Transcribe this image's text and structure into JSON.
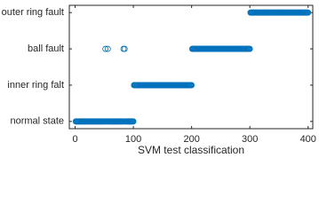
{
  "chart_data": {
    "type": "scatter",
    "xlabel": "SVM test classification",
    "xlim": [
      -10,
      408
    ],
    "xticks": [
      0,
      100,
      200,
      300,
      400
    ],
    "ylim": [
      0.8,
      4.2
    ],
    "yticks": [
      {
        "value": 1,
        "label": "normal state"
      },
      {
        "value": 2,
        "label": "inner ring falt"
      },
      {
        "value": 3,
        "label": "ball fault"
      },
      {
        "value": 4,
        "label": "outer ring fault"
      }
    ],
    "series": [
      {
        "color": "#0072bd",
        "x": [
          1,
          2,
          3,
          4,
          5,
          6,
          7,
          8,
          9,
          10,
          11,
          12,
          13,
          14,
          15,
          16,
          17,
          18,
          19,
          20,
          21,
          22,
          23,
          24,
          25,
          26,
          27,
          28,
          29,
          30,
          31,
          32,
          33,
          34,
          35,
          36,
          37,
          38,
          39,
          40,
          41,
          42,
          43,
          44,
          45,
          46,
          47,
          48,
          49,
          50,
          51,
          52,
          53,
          54,
          55,
          56,
          57,
          58,
          59,
          60,
          61,
          62,
          63,
          64,
          65,
          66,
          67,
          68,
          69,
          70,
          71,
          72,
          73,
          74,
          75,
          76,
          77,
          78,
          79,
          80,
          81,
          82,
          83,
          84,
          85,
          86,
          87,
          88,
          89,
          90,
          91,
          92,
          93,
          94,
          95,
          96,
          97,
          98,
          99,
          100,
          101,
          102,
          103,
          104,
          105,
          106,
          107,
          108,
          109,
          110,
          111,
          112,
          113,
          114,
          115,
          116,
          117,
          118,
          119,
          120,
          121,
          122,
          123,
          124,
          125,
          126,
          127,
          128,
          129,
          130,
          131,
          132,
          133,
          134,
          135,
          136,
          137,
          138,
          139,
          140,
          141,
          142,
          143,
          144,
          145,
          146,
          147,
          148,
          149,
          150,
          151,
          152,
          153,
          154,
          155,
          156,
          157,
          158,
          159,
          160,
          161,
          162,
          163,
          164,
          165,
          166,
          167,
          168,
          169,
          170,
          171,
          172,
          173,
          174,
          175,
          176,
          177,
          178,
          179,
          180,
          181,
          182,
          183,
          184,
          185,
          186,
          187,
          188,
          189,
          190,
          191,
          192,
          193,
          194,
          195,
          196,
          197,
          198,
          199,
          200,
          201,
          202,
          203,
          204,
          205,
          206,
          207,
          208,
          209,
          210,
          211,
          212,
          213,
          214,
          215,
          216,
          217,
          218,
          219,
          220,
          221,
          222,
          223,
          224,
          225,
          226,
          227,
          228,
          229,
          230,
          231,
          232,
          233,
          234,
          235,
          236,
          237,
          238,
          239,
          240,
          241,
          242,
          243,
          244,
          245,
          246,
          247,
          248,
          249,
          250,
          251,
          252,
          253,
          254,
          255,
          256,
          257,
          258,
          259,
          260,
          261,
          262,
          263,
          264,
          265,
          266,
          267,
          268,
          269,
          270,
          271,
          272,
          273,
          274,
          275,
          276,
          277,
          278,
          279,
          280,
          281,
          282,
          283,
          284,
          285,
          286,
          287,
          288,
          289,
          290,
          291,
          292,
          293,
          294,
          295,
          296,
          297,
          298,
          299,
          300,
          301,
          302,
          303,
          304,
          305,
          306,
          307,
          308,
          309,
          310,
          311,
          312,
          313,
          314,
          315,
          316,
          317,
          318,
          319,
          320,
          321,
          322,
          323,
          324,
          325,
          326,
          327,
          328,
          329,
          330,
          331,
          332,
          333,
          334,
          335,
          336,
          337,
          338,
          339,
          340,
          341,
          342,
          343,
          344,
          345,
          346,
          347,
          348,
          349,
          350,
          351,
          352,
          353,
          354,
          355,
          356,
          357,
          358,
          359,
          360,
          361,
          362,
          363,
          364,
          365,
          366,
          367,
          368,
          369,
          370,
          371,
          372,
          373,
          374,
          375,
          376,
          377,
          378,
          379,
          380,
          381,
          382,
          383,
          384,
          385,
          386,
          387,
          388,
          389,
          390,
          391,
          392,
          393,
          394,
          395,
          396,
          397,
          398,
          399,
          400
        ],
        "values": [
          1,
          1,
          1,
          1,
          1,
          1,
          1,
          1,
          1,
          1,
          1,
          1,
          1,
          1,
          1,
          1,
          1,
          1,
          1,
          1,
          1,
          1,
          1,
          1,
          1,
          1,
          1,
          1,
          1,
          1,
          1,
          1,
          1,
          1,
          1,
          1,
          1,
          1,
          1,
          1,
          1,
          1,
          1,
          1,
          1,
          1,
          1,
          1,
          1,
          1,
          1,
          3,
          1,
          1,
          1,
          3,
          1,
          1,
          1,
          1,
          1,
          1,
          1,
          1,
          1,
          1,
          1,
          1,
          1,
          1,
          1,
          1,
          1,
          1,
          1,
          1,
          1,
          1,
          1,
          1,
          1,
          1,
          3,
          1,
          3,
          1,
          1,
          1,
          1,
          1,
          1,
          1,
          1,
          1,
          1,
          1,
          1,
          1,
          1,
          1,
          2,
          2,
          2,
          2,
          2,
          2,
          2,
          2,
          2,
          2,
          2,
          2,
          2,
          2,
          2,
          2,
          2,
          2,
          2,
          2,
          2,
          2,
          2,
          2,
          2,
          2,
          2,
          2,
          2,
          2,
          2,
          2,
          2,
          2,
          2,
          2,
          2,
          2,
          2,
          2,
          2,
          2,
          2,
          2,
          2,
          2,
          2,
          2,
          2,
          2,
          2,
          2,
          2,
          2,
          2,
          2,
          2,
          2,
          2,
          2,
          2,
          2,
          2,
          2,
          2,
          2,
          2,
          2,
          2,
          2,
          2,
          2,
          2,
          2,
          2,
          2,
          2,
          2,
          2,
          2,
          2,
          2,
          2,
          2,
          2,
          2,
          2,
          2,
          2,
          2,
          2,
          2,
          2,
          2,
          2,
          2,
          2,
          2,
          2,
          2,
          3,
          3,
          3,
          3,
          3,
          3,
          3,
          3,
          3,
          3,
          3,
          3,
          3,
          3,
          3,
          3,
          3,
          3,
          3,
          3,
          3,
          3,
          3,
          3,
          3,
          3,
          3,
          3,
          3,
          3,
          3,
          3,
          3,
          3,
          3,
          3,
          3,
          3,
          3,
          3,
          3,
          3,
          3,
          3,
          3,
          3,
          3,
          3,
          3,
          3,
          3,
          3,
          3,
          3,
          3,
          3,
          3,
          3,
          3,
          3,
          3,
          3,
          3,
          3,
          3,
          3,
          3,
          3,
          3,
          3,
          3,
          3,
          3,
          3,
          3,
          3,
          3,
          3,
          3,
          3,
          3,
          3,
          3,
          3,
          3,
          3,
          3,
          3,
          3,
          3,
          3,
          3,
          3,
          3,
          3,
          3,
          3,
          3,
          3,
          3,
          4,
          4,
          4,
          4,
          4,
          4,
          4,
          4,
          4,
          4,
          4,
          4,
          4,
          4,
          4,
          4,
          4,
          4,
          4,
          4,
          4,
          4,
          4,
          4,
          4,
          4,
          4,
          4,
          4,
          4,
          4,
          4,
          4,
          4,
          4,
          4,
          4,
          4,
          4,
          4,
          4,
          4,
          4,
          4,
          4,
          4,
          4,
          4,
          4,
          4,
          4,
          4,
          4,
          4,
          4,
          4,
          4,
          4,
          4,
          4,
          4,
          4,
          4,
          4,
          4,
          4,
          4,
          4,
          4,
          4,
          4,
          4,
          4,
          4,
          4,
          4,
          4,
          4,
          4,
          4,
          4,
          4,
          4,
          4,
          4,
          4,
          4,
          4,
          4,
          4,
          4,
          4,
          4,
          4,
          4,
          4,
          4,
          4,
          4,
          4
        ]
      }
    ]
  }
}
